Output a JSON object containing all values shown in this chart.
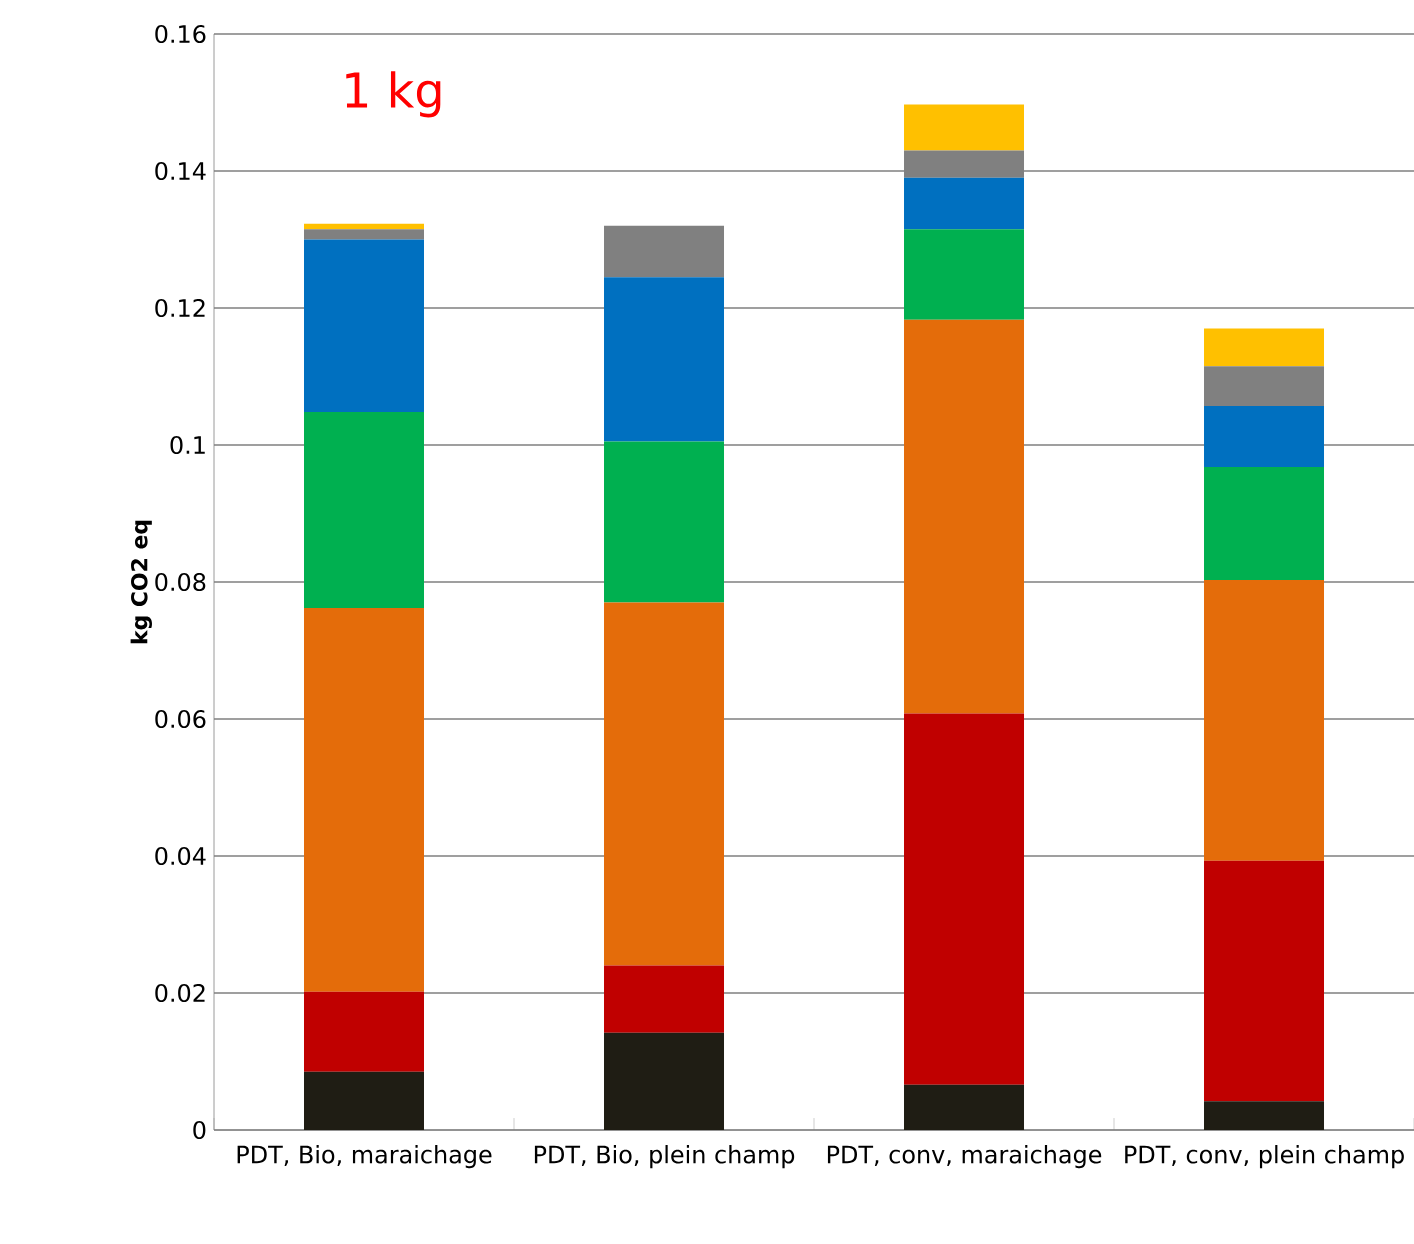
{
  "chart_data": {
    "type": "bar",
    "stacked": true,
    "ylabel": "kg CO2 eq",
    "categories": [
      "PDT, Bio, maraichage",
      "PDT, Bio, plein champ",
      "PDT, conv, maraichage",
      "PDT, conv, plein champ"
    ],
    "series": [
      {
        "color": "#1f1d14",
        "values": [
          0.0085,
          0.0142,
          0.0066,
          0.0042
        ]
      },
      {
        "color": "#c00000",
        "values": [
          0.0117,
          0.0098,
          0.0542,
          0.0351
        ]
      },
      {
        "color": "#e46c0a",
        "values": [
          0.056,
          0.053,
          0.0575,
          0.041
        ]
      },
      {
        "color": "#00b050",
        "values": [
          0.0286,
          0.0235,
          0.0132,
          0.0165
        ]
      },
      {
        "color": "#0070c0",
        "values": [
          0.0252,
          0.024,
          0.0075,
          0.0089
        ]
      },
      {
        "color": "#808080",
        "values": [
          0.0015,
          0.0075,
          0.004,
          0.0058
        ]
      },
      {
        "color": "#ffc000",
        "values": [
          0.0008,
          0,
          0.0067,
          0.0055
        ]
      }
    ],
    "ylim": [
      0,
      0.16
    ],
    "yticks": [
      0,
      0.02,
      0.04,
      0.06,
      0.08,
      0.1,
      0.12,
      0.14,
      0.16
    ],
    "grid": "y",
    "annotations": [
      "1 kg"
    ]
  }
}
